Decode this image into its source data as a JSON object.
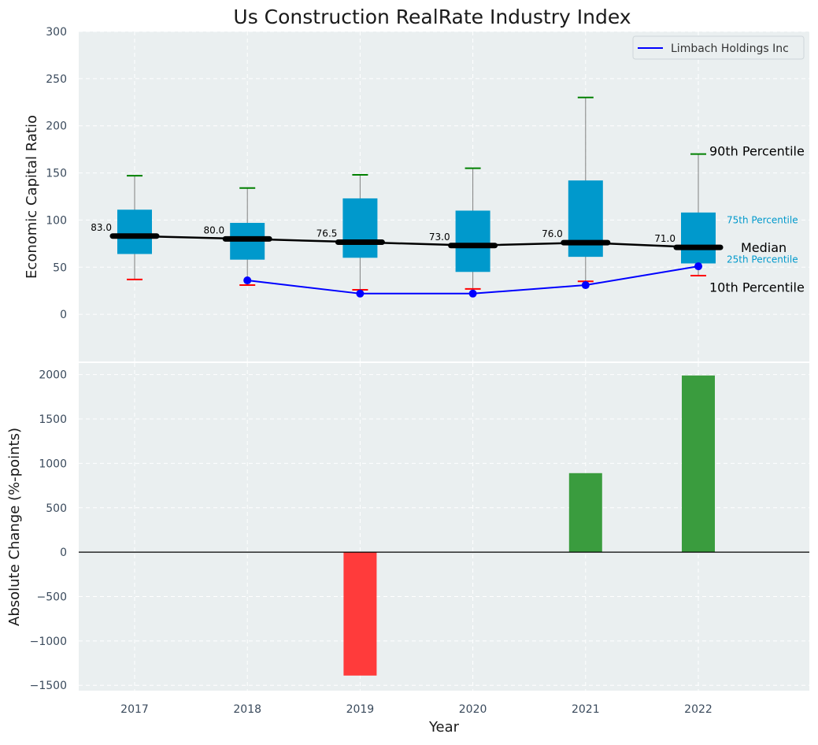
{
  "chart_data": [
    {
      "type": "box",
      "title": "Us Construction RealRate Industry Index",
      "ylabel": "Economic Capital Ratio",
      "xlabel": "",
      "ylim": [
        -50,
        300
      ],
      "yticks": [
        0,
        50,
        100,
        150,
        200,
        250,
        300
      ],
      "grid": true,
      "categories": [
        "2017",
        "2018",
        "2019",
        "2020",
        "2021",
        "2022"
      ],
      "p10": [
        37,
        31,
        26,
        27,
        35,
        41
      ],
      "p25": [
        64,
        58,
        60,
        45,
        61,
        54
      ],
      "median": [
        83.0,
        80.0,
        76.5,
        73.0,
        76.0,
        71.0
      ],
      "p75": [
        111,
        97,
        123,
        110,
        142,
        108
      ],
      "p90": [
        147,
        134,
        148,
        155,
        230,
        170
      ],
      "median_labels": [
        "83.0",
        "80.0",
        "76.5",
        "73.0",
        "76.0",
        "71.0"
      ],
      "series": [
        {
          "name": "Limbach Holdings Inc",
          "color": "#0000ff",
          "x": [
            "2018",
            "2019",
            "2020",
            "2021",
            "2022"
          ],
          "values": [
            36,
            22,
            22,
            31,
            51
          ]
        }
      ],
      "legend": {
        "position": "top-right",
        "label": "Limbach Holdings Inc"
      },
      "annotations": {
        "p90": "90th Percentile",
        "p75": "75th Percentile",
        "median": "Median",
        "p25": "25th Percentile",
        "p10": "10th Percentile"
      }
    },
    {
      "type": "bar",
      "ylabel": "Absolute Change (%-points)",
      "xlabel": "Year",
      "ylim": [
        -1560,
        2130
      ],
      "yticks": [
        -1500,
        -1000,
        -500,
        0,
        500,
        1000,
        1500,
        2000
      ],
      "ytick_labels": [
        "−1500",
        "−1000",
        "−500",
        "0",
        "500",
        "1000",
        "1500",
        "2000"
      ],
      "grid": true,
      "categories": [
        "2017",
        "2018",
        "2019",
        "2020",
        "2021",
        "2022"
      ],
      "values": [
        0,
        0,
        -1390,
        0,
        890,
        1990
      ]
    }
  ],
  "colors": {
    "panel_bg": "#eaeff0",
    "box": "#0099cc",
    "median_line": "#000000",
    "p90_cap": "#008000",
    "p10_cap": "#ff0000",
    "whisker": "#808080",
    "bar_positive": "#3a9c3e",
    "bar_negative": "#ff3b3b",
    "tick_text": "#3a4a5c",
    "annotation_teal": "#0099cc"
  }
}
